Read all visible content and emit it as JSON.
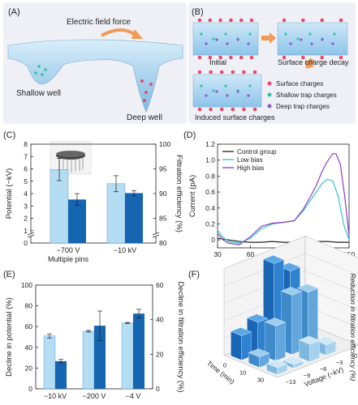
{
  "panels": {
    "A": {
      "letter": "(A)",
      "force_label": "Electric field force",
      "shallow_label": "Shallow well",
      "deep_label": "Deep well"
    },
    "B": {
      "letter": "(B)",
      "initial_label": "Initial",
      "decay_label": "Surface charge decay",
      "induced_label": "Induced surface charges",
      "legend": [
        "Surface charges",
        "Shallow trap charges",
        "Deep trap charges"
      ]
    },
    "C": {
      "letter": "(C)"
    },
    "D": {
      "letter": "(D)"
    },
    "E": {
      "letter": "(E)"
    },
    "F": {
      "letter": "(F)"
    }
  },
  "colors": {
    "light_blue": "#b4dcf3",
    "dark_blue": "#1565b0",
    "surface_charge": "#e84a6b",
    "shallow_charge": "#2ec4a6",
    "deep_charge": "#8a5cc8",
    "panel_bg": "#eef0f6",
    "control": "#222222",
    "low_bias": "#33c6c6",
    "high_bias": "#8a3fc7"
  },
  "chart_data": [
    {
      "panel": "C",
      "type": "bar",
      "categories": [
        "−700 V",
        "−10 kV"
      ],
      "category_sublabels": [
        "Multiple pins",
        ""
      ],
      "ylabel": "Potential (−kV)",
      "ylabel_right": "Filtration efficiency (%)",
      "yticks_left": [
        "0",
        "1",
        "2",
        "3",
        "4",
        "5",
        "6",
        "7",
        "8"
      ],
      "yticks_right": [
        "80",
        "85",
        "90",
        "95",
        "100"
      ],
      "ylim": [
        0,
        8
      ],
      "ylim_right": [
        80,
        100
      ],
      "axis_break": true,
      "series": [
        {
          "axis": "left",
          "values": [
            5.95,
            4.8
          ],
          "errors": [
            0.9,
            0.65
          ]
        },
        {
          "axis": "right",
          "values": [
            88.8,
            90.1
          ],
          "errors": [
            1.2,
            0.5
          ]
        }
      ]
    },
    {
      "panel": "D",
      "type": "line",
      "xlabel": "Temperature (°C)",
      "ylabel": "Current (pA)",
      "xlim": [
        30,
        150
      ],
      "ylim": [
        -0.1,
        1.2
      ],
      "xticks": [
        "30",
        "60",
        "90",
        "120",
        "150"
      ],
      "yticks": [
        "0",
        "0.2",
        "0.4",
        "0.6",
        "0.8",
        "1.0",
        "1.2"
      ],
      "legend": [
        "Control group",
        "Low bias",
        "High bias"
      ],
      "series": [
        {
          "name": "Control group",
          "x": [
            30,
            40,
            50,
            60,
            70,
            80,
            90,
            100,
            110,
            120,
            130,
            140,
            150
          ],
          "y": [
            0.02,
            0.0,
            -0.02,
            -0.03,
            -0.03,
            -0.02,
            -0.03,
            -0.03,
            -0.02,
            -0.02,
            -0.02,
            -0.03,
            -0.03
          ]
        },
        {
          "name": "Low bias",
          "x": [
            30,
            35,
            40,
            50,
            60,
            70,
            80,
            90,
            100,
            108,
            115,
            120,
            125,
            130,
            135,
            140,
            145,
            150
          ],
          "y": [
            0.12,
            0.03,
            -0.02,
            -0.04,
            0.02,
            0.14,
            0.2,
            0.22,
            0.24,
            0.36,
            0.5,
            0.6,
            0.7,
            0.76,
            0.74,
            0.55,
            0.2,
            0.0
          ]
        },
        {
          "name": "High bias",
          "x": [
            30,
            35,
            40,
            50,
            60,
            70,
            80,
            90,
            100,
            108,
            115,
            120,
            125,
            130,
            135,
            138,
            142,
            146,
            150
          ],
          "y": [
            0.08,
            0.0,
            -0.04,
            -0.06,
            0.04,
            0.17,
            0.21,
            0.22,
            0.24,
            0.38,
            0.55,
            0.68,
            0.85,
            0.98,
            1.08,
            1.08,
            0.95,
            0.55,
            0.05
          ]
        }
      ]
    },
    {
      "panel": "E",
      "type": "bar",
      "categories": [
        "−10 kV",
        "−200 V",
        "−4 V"
      ],
      "ylabel": "Decline in potential (%)",
      "ylabel_right": "Decline in filtration efficiency (%)",
      "yticks_left": [
        "0",
        "20",
        "40",
        "60",
        "80",
        "100"
      ],
      "yticks_right": [
        "0",
        "20",
        "40",
        "60"
      ],
      "ylim": [
        0,
        100
      ],
      "ylim_right": [
        0,
        60
      ],
      "series": [
        {
          "axis": "left",
          "values": [
            51,
            55.5,
            63.5
          ],
          "errors": [
            2,
            0.8,
            0.6
          ]
        },
        {
          "axis": "right",
          "values": [
            16,
            36.5,
            43.5
          ],
          "errors": [
            1,
            8.5,
            2.5
          ]
        }
      ]
    },
    {
      "panel": "F",
      "type": "bar3d",
      "zlabel": "Reduction in filtration efficiency (%)",
      "xlabel": "Time (min)",
      "ylabel": "Voltage (−kV)",
      "time_ticks": [
        "0",
        "10",
        "30"
      ],
      "voltage_ticks": [
        "−13",
        "−9",
        "−6",
        "−3",
        "0"
      ],
      "zticks": [
        "0",
        "5",
        "10",
        "15",
        "20",
        "25"
      ],
      "zlim": [
        0,
        25
      ],
      "bars": [
        {
          "t": 0,
          "v": -13,
          "z": 7
        },
        {
          "t": 0,
          "v": -9,
          "z": 9
        },
        {
          "t": 0,
          "v": -6,
          "z": 24
        },
        {
          "t": 0,
          "v": -3,
          "z": 20
        },
        {
          "t": 10,
          "v": -13,
          "z": 3
        },
        {
          "t": 10,
          "v": -9,
          "z": 10
        },
        {
          "t": 10,
          "v": -6,
          "z": 17
        },
        {
          "t": 10,
          "v": -3,
          "z": 16
        },
        {
          "t": 30,
          "v": -13,
          "z": 2
        },
        {
          "t": 30,
          "v": -9,
          "z": 1
        },
        {
          "t": 30,
          "v": -6,
          "z": 5
        },
        {
          "t": 30,
          "v": -3,
          "z": 3
        }
      ]
    }
  ]
}
